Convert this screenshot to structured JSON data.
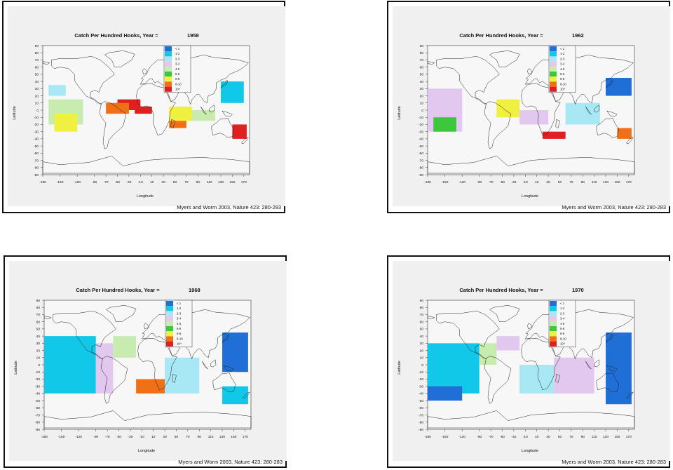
{
  "chart_data": [
    {
      "type": "heatmap",
      "title": "Catch Per Hundred Hooks, Year =",
      "year": "1958",
      "xlabel": "Longitude",
      "ylabel": "Latitude",
      "credit": "Myers and Worm 2003, Nature 423: 280-283",
      "xlim": [
        -180,
        180
      ],
      "ylim": [
        -90,
        90
      ],
      "x_ticks": [
        "-180",
        "-150",
        "-120",
        "-90",
        "-70",
        "-50",
        "-30",
        "-10",
        "10",
        "30",
        "50",
        "70",
        "90",
        "110",
        "130",
        "150",
        "170"
      ],
      "y_ticks": [
        "90",
        "80",
        "70",
        "60",
        "50",
        "40",
        "30",
        "20",
        "10",
        "0",
        "-10",
        "-20",
        "-30",
        "-40",
        "-50",
        "-60",
        "-70",
        "-80",
        "-90"
      ],
      "legend": {
        "labels": [
          "< 1",
          "1-2",
          "2-3",
          "3-4",
          "4-5",
          "5-6",
          "6-8",
          "8-10",
          "10+"
        ],
        "colors": [
          "#1f6fd6",
          "#12c8e8",
          "#a8e8f4",
          "#e2c8ee",
          "#c8ecb0",
          "#3cc83c",
          "#f0f040",
          "#f07018",
          "#e02020"
        ]
      },
      "cells": [
        {
          "lon_range": [
            -170,
            -140
          ],
          "lat_range": [
            35,
            20
          ],
          "class": "2-3"
        },
        {
          "lon_range": [
            -170,
            -110
          ],
          "lat_range": [
            15,
            -20
          ],
          "class": "4-5"
        },
        {
          "lon_range": [
            -160,
            -120
          ],
          "lat_range": [
            -5,
            -30
          ],
          "class": "6-8"
        },
        {
          "lon_range": [
            -50,
            -10
          ],
          "lat_range": [
            15,
            0
          ],
          "class": "10+"
        },
        {
          "lon_range": [
            -70,
            -30
          ],
          "lat_range": [
            10,
            -5
          ],
          "class": "8-10"
        },
        {
          "lon_range": [
            -20,
            10
          ],
          "lat_range": [
            5,
            -5
          ],
          "class": "10+"
        },
        {
          "lon_range": [
            40,
            80
          ],
          "lat_range": [
            5,
            -15
          ],
          "class": "6-8"
        },
        {
          "lon_range": [
            40,
            70
          ],
          "lat_range": [
            -15,
            -25
          ],
          "class": "8-10"
        },
        {
          "lon_range": [
            80,
            120
          ],
          "lat_range": [
            0,
            -15
          ],
          "class": "4-5"
        },
        {
          "lon_range": [
            130,
            170
          ],
          "lat_range": [
            40,
            10
          ],
          "class": "1-2"
        },
        {
          "lon_range": [
            150,
            175
          ],
          "lat_range": [
            -20,
            -40
          ],
          "class": "10+"
        }
      ]
    },
    {
      "type": "heatmap",
      "title": "Catch Per Hundred Hooks, Year =",
      "year": "1962",
      "xlabel": "Longitude",
      "ylabel": "Latitude",
      "credit": "Myers and Worm 2003, Nature 423: 280-283",
      "xlim": [
        -180,
        180
      ],
      "ylim": [
        -90,
        90
      ],
      "x_ticks": [
        "-180",
        "-150",
        "-120",
        "-90",
        "-70",
        "-50",
        "-30",
        "-10",
        "10",
        "30",
        "50",
        "70",
        "90",
        "110",
        "130",
        "150",
        "170"
      ],
      "y_ticks": [
        "90",
        "80",
        "70",
        "60",
        "50",
        "40",
        "30",
        "20",
        "10",
        "0",
        "-10",
        "-20",
        "-30",
        "-40",
        "-50",
        "-60",
        "-70",
        "-80",
        "-90"
      ],
      "legend": {
        "labels": [
          "< 1",
          "1-2",
          "2-3",
          "3-4",
          "4-5",
          "5-6",
          "6-8",
          "8-10",
          "10+"
        ],
        "colors": [
          "#1f6fd6",
          "#12c8e8",
          "#a8e8f4",
          "#e2c8ee",
          "#c8ecb0",
          "#3cc83c",
          "#f0f040",
          "#f07018",
          "#e02020"
        ]
      },
      "cells": [
        {
          "lon_range": [
            -180,
            -120
          ],
          "lat_range": [
            30,
            -30
          ],
          "class": "3-4"
        },
        {
          "lon_range": [
            -170,
            -130
          ],
          "lat_range": [
            -10,
            -30
          ],
          "class": "5-6"
        },
        {
          "lon_range": [
            -60,
            -20
          ],
          "lat_range": [
            15,
            -10
          ],
          "class": "6-8"
        },
        {
          "lon_range": [
            -20,
            30
          ],
          "lat_range": [
            0,
            -20
          ],
          "class": "3-4"
        },
        {
          "lon_range": [
            20,
            60
          ],
          "lat_range": [
            -30,
            -40
          ],
          "class": "10+"
        },
        {
          "lon_range": [
            60,
            120
          ],
          "lat_range": [
            10,
            -20
          ],
          "class": "2-3"
        },
        {
          "lon_range": [
            130,
            175
          ],
          "lat_range": [
            45,
            20
          ],
          "class": "< 1"
        },
        {
          "lon_range": [
            150,
            175
          ],
          "lat_range": [
            -25,
            -40
          ],
          "class": "8-10"
        }
      ]
    },
    {
      "type": "heatmap",
      "title": "Catch Per Hundred Hooks, Year =",
      "year": "1968",
      "xlabel": "Longitude",
      "ylabel": "Latitude",
      "credit": "Myers and Worm 2003, Nature 423: 280-283",
      "xlim": [
        -180,
        180
      ],
      "ylim": [
        -90,
        90
      ],
      "x_ticks": [
        "-180",
        "-150",
        "-120",
        "-90",
        "-70",
        "-50",
        "-30",
        "-10",
        "10",
        "30",
        "50",
        "70",
        "90",
        "110",
        "130",
        "150",
        "170"
      ],
      "y_ticks": [
        "90",
        "80",
        "70",
        "60",
        "50",
        "40",
        "30",
        "20",
        "10",
        "0",
        "-10",
        "-20",
        "-30",
        "-40",
        "-50",
        "-60",
        "-70",
        "-80",
        "-90"
      ],
      "legend": {
        "labels": [
          "< 1",
          "1-2",
          "2-3",
          "3-4",
          "4-5",
          "5-6",
          "6-8",
          "8-10",
          "10+"
        ],
        "colors": [
          "#1f6fd6",
          "#12c8e8",
          "#a8e8f4",
          "#e2c8ee",
          "#c8ecb0",
          "#3cc83c",
          "#f0f040",
          "#f07018",
          "#e02020"
        ]
      },
      "cells": [
        {
          "lon_range": [
            -180,
            -90
          ],
          "lat_range": [
            40,
            -40
          ],
          "class": "1-2"
        },
        {
          "lon_range": [
            -90,
            -60
          ],
          "lat_range": [
            30,
            -40
          ],
          "class": "3-4"
        },
        {
          "lon_range": [
            -60,
            -20
          ],
          "lat_range": [
            40,
            10
          ],
          "class": "4-5"
        },
        {
          "lon_range": [
            -20,
            30
          ],
          "lat_range": [
            -20,
            -40
          ],
          "class": "8-10"
        },
        {
          "lon_range": [
            30,
            90
          ],
          "lat_range": [
            10,
            -40
          ],
          "class": "2-3"
        },
        {
          "lon_range": [
            130,
            175
          ],
          "lat_range": [
            45,
            -10
          ],
          "class": "< 1"
        },
        {
          "lon_range": [
            130,
            175
          ],
          "lat_range": [
            -30,
            -55
          ],
          "class": "1-2"
        }
      ]
    },
    {
      "type": "heatmap",
      "title": "Catch Per Hundred Hooks, Year =",
      "year": "1970",
      "xlabel": "Longitude",
      "ylabel": "Latitude",
      "credit": "Myers and Worm 2003, Nature 423: 280-283",
      "xlim": [
        -180,
        180
      ],
      "ylim": [
        -90,
        90
      ],
      "x_ticks": [
        "-180",
        "-150",
        "-120",
        "-90",
        "-70",
        "-50",
        "-30",
        "-10",
        "10",
        "30",
        "50",
        "70",
        "90",
        "110",
        "130",
        "150",
        "170"
      ],
      "y_ticks": [
        "90",
        "80",
        "70",
        "60",
        "50",
        "40",
        "30",
        "20",
        "10",
        "0",
        "-10",
        "-20",
        "-30",
        "-40",
        "-50",
        "-60",
        "-70",
        "-80",
        "-90"
      ],
      "legend": {
        "labels": [
          "< 1",
          "1-2",
          "2-3",
          "3-4",
          "4-5",
          "5-6",
          "6-8",
          "8-10",
          "10+"
        ],
        "colors": [
          "#1f6fd6",
          "#12c8e8",
          "#a8e8f4",
          "#e2c8ee",
          "#c8ecb0",
          "#3cc83c",
          "#f0f040",
          "#f07018",
          "#e02020"
        ]
      },
      "cells": [
        {
          "lon_range": [
            -180,
            -90
          ],
          "lat_range": [
            30,
            -40
          ],
          "class": "1-2"
        },
        {
          "lon_range": [
            -180,
            -120
          ],
          "lat_range": [
            -30,
            -50
          ],
          "class": "< 1"
        },
        {
          "lon_range": [
            -90,
            -60
          ],
          "lat_range": [
            30,
            0
          ],
          "class": "4-5"
        },
        {
          "lon_range": [
            -60,
            -20
          ],
          "lat_range": [
            40,
            20
          ],
          "class": "3-4"
        },
        {
          "lon_range": [
            -20,
            40
          ],
          "lat_range": [
            0,
            -40
          ],
          "class": "2-3"
        },
        {
          "lon_range": [
            40,
            110
          ],
          "lat_range": [
            10,
            -40
          ],
          "class": "3-4"
        },
        {
          "lon_range": [
            130,
            175
          ],
          "lat_range": [
            45,
            -55
          ],
          "class": "< 1"
        }
      ]
    }
  ]
}
